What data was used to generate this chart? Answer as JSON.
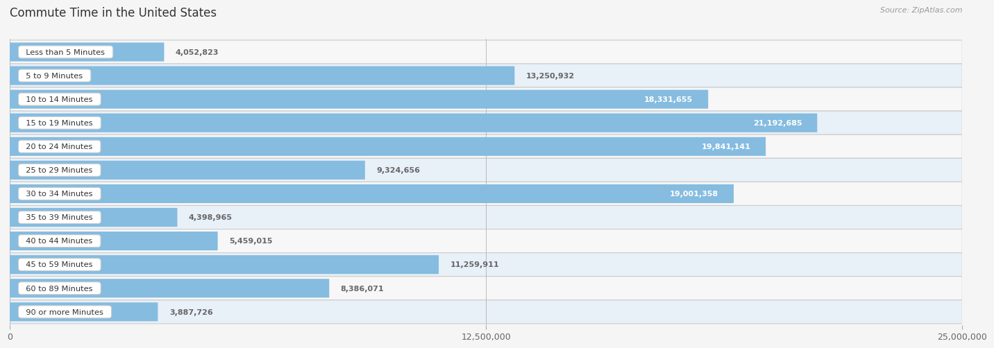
{
  "title": "Commute Time in the United States",
  "source": "Source: ZipAtlas.com",
  "categories": [
    "Less than 5 Minutes",
    "5 to 9 Minutes",
    "10 to 14 Minutes",
    "15 to 19 Minutes",
    "20 to 24 Minutes",
    "25 to 29 Minutes",
    "30 to 34 Minutes",
    "35 to 39 Minutes",
    "40 to 44 Minutes",
    "45 to 59 Minutes",
    "60 to 89 Minutes",
    "90 or more Minutes"
  ],
  "values": [
    4052823,
    13250932,
    18331655,
    21192685,
    19841141,
    9324656,
    19001358,
    4398965,
    5459015,
    11259911,
    8386071,
    3887726
  ],
  "bar_color": "#85bce0",
  "row_bg_odd": "#f7f7f7",
  "row_bg_even": "#e8f0f8",
  "bg_color": "#f5f5f5",
  "title_color": "#333333",
  "value_color_inside": "#ffffff",
  "value_color_outside": "#666666",
  "source_color": "#999999",
  "label_box_color": "#ffffff",
  "label_text_color": "#333333",
  "xlim": [
    0,
    25000000
  ],
  "xtick_labels": [
    "0",
    "12,500,000",
    "25,000,000"
  ],
  "inside_threshold": 14000000
}
